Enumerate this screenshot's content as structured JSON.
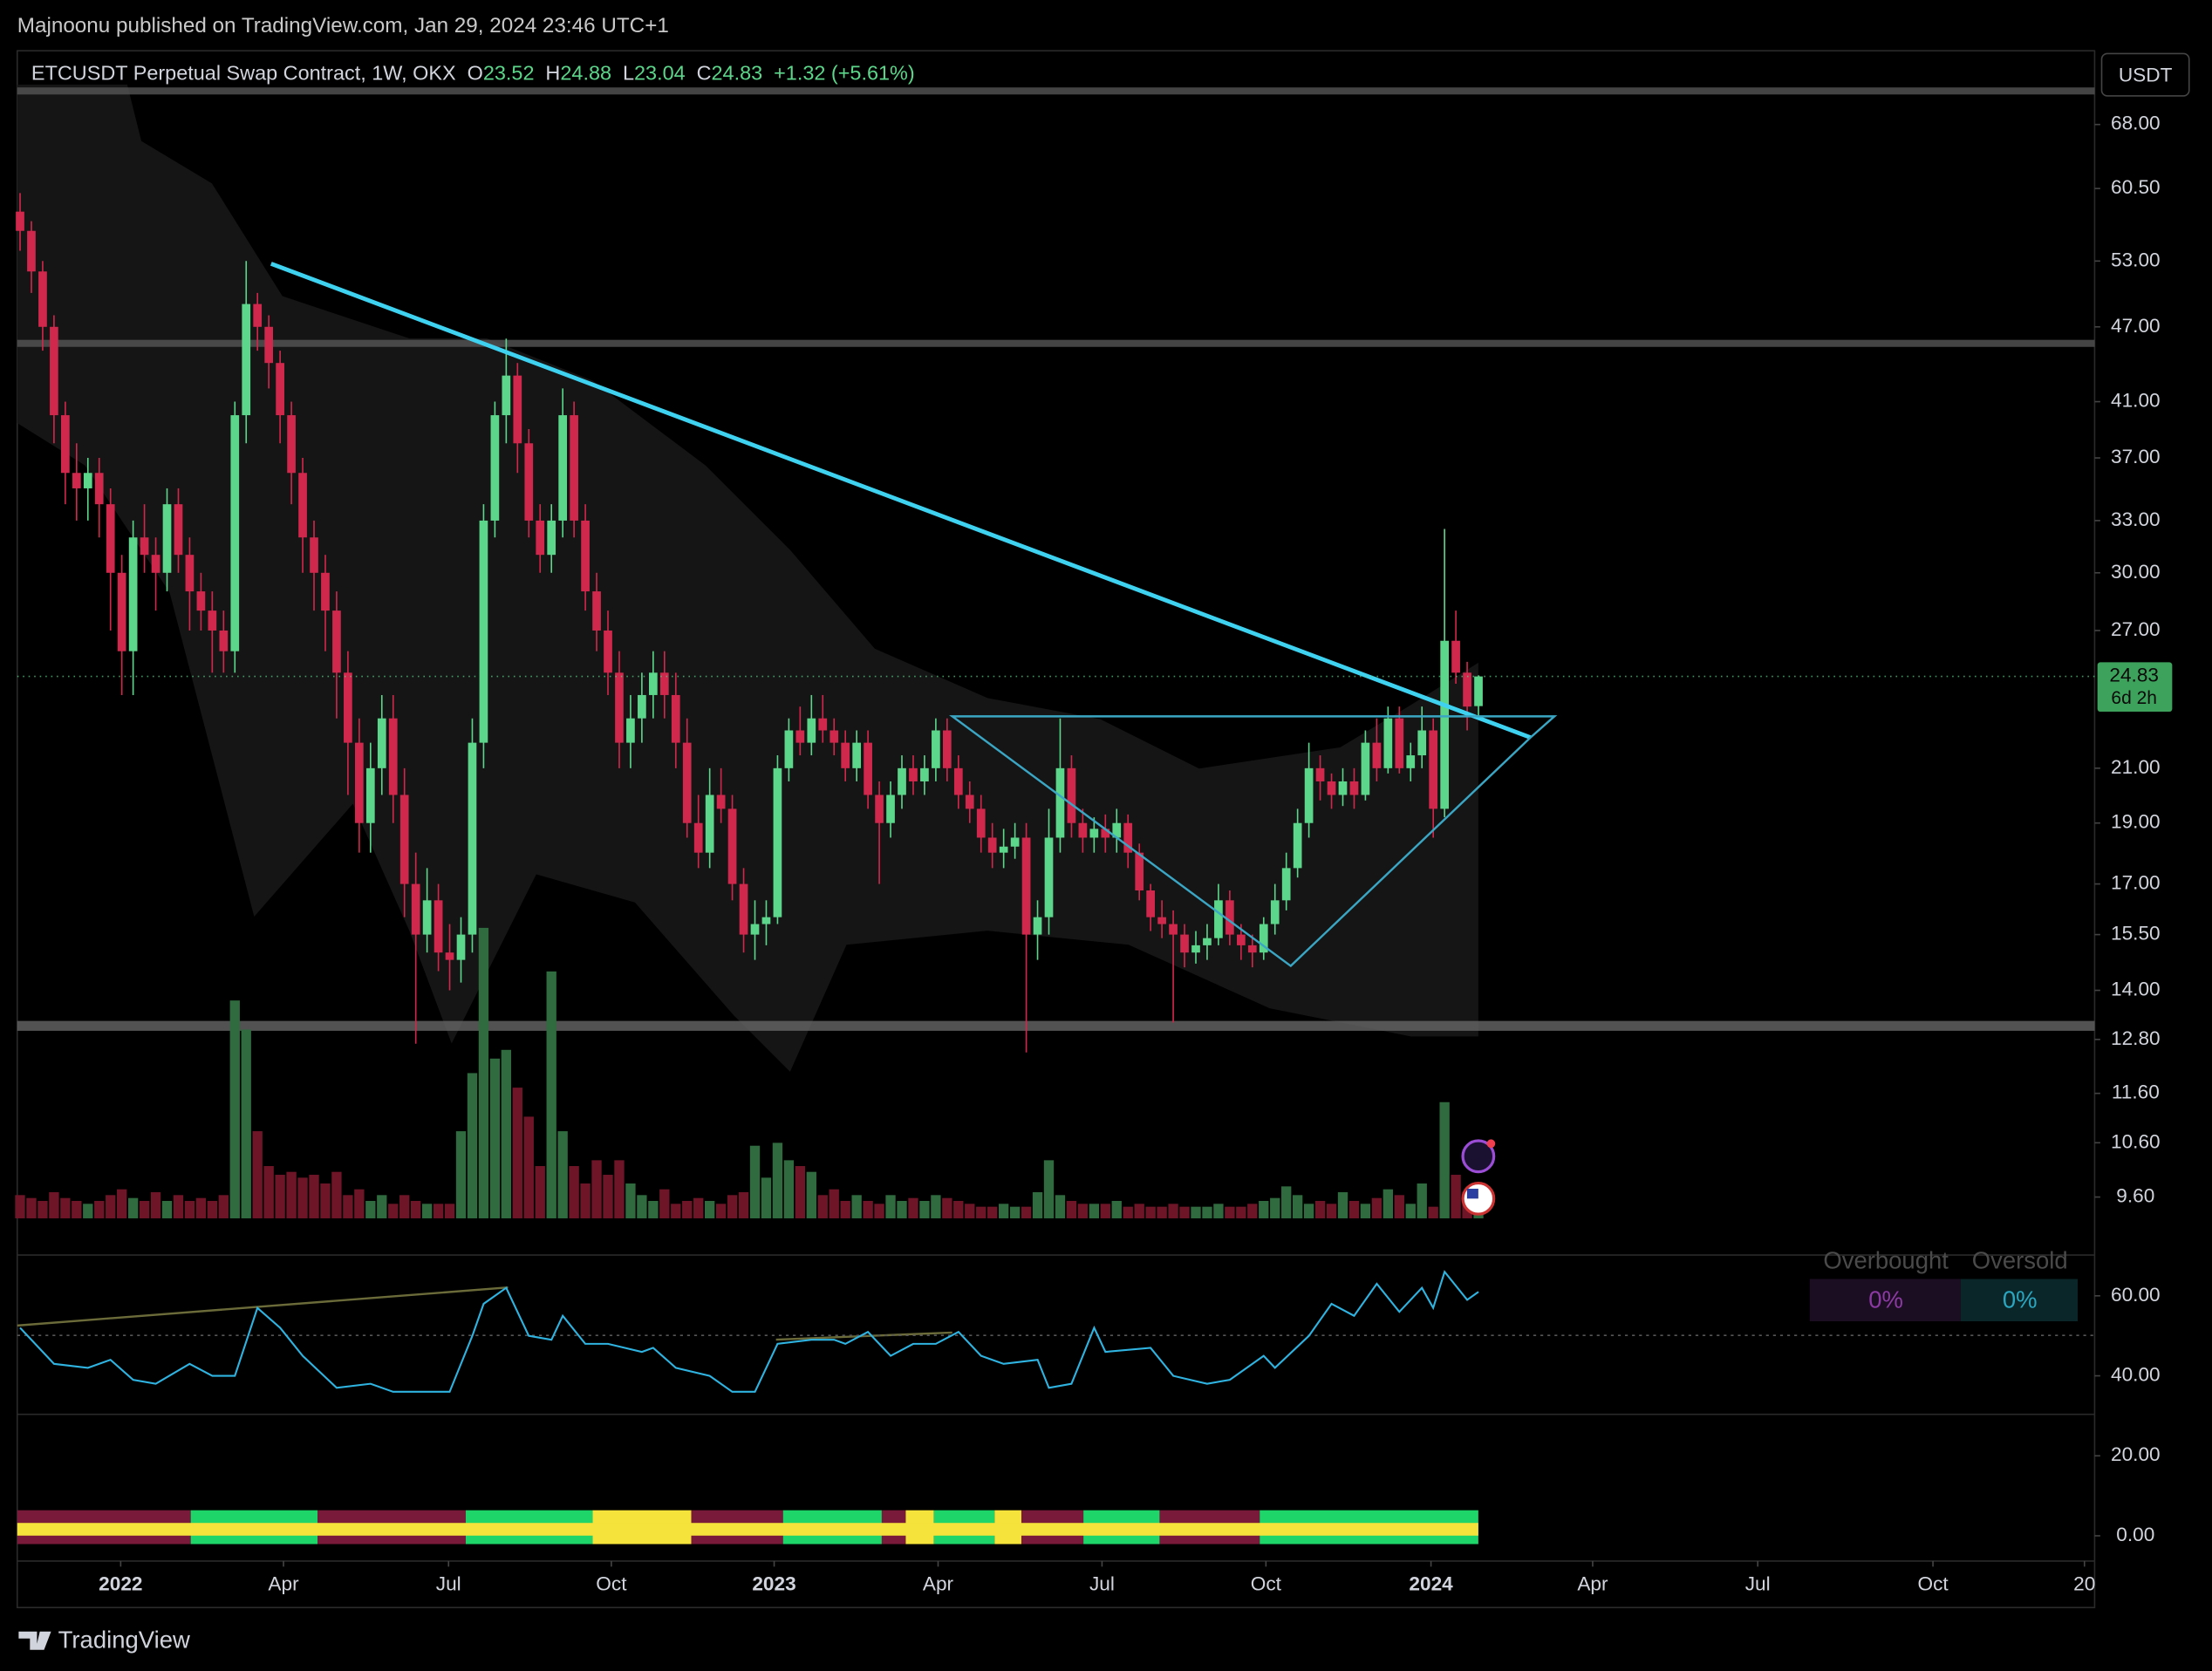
{
  "header": {
    "publisher": "Majnoonu published on TradingView.com, Jan 29, 2024 23:46 UTC+1"
  },
  "footer": {
    "brand": "TradingView"
  },
  "chart_data": [
    {
      "type": "candlestick",
      "title": "ETCUSDT Perpetual Swap Contract, 1W, OKX",
      "currency": "USDT",
      "legend": [
        {
          "label": "O",
          "value": 23.52
        },
        {
          "label": "H",
          "value": 24.88
        },
        {
          "label": "L",
          "value": 23.04
        },
        {
          "label": "C",
          "value": 24.83
        }
      ],
      "change": "+1.32 (+5.61%)",
      "price_tag": {
        "price": 24.83,
        "countdown": "6d 2h"
      },
      "up_color": "#5cd68a",
      "down_color": "#d0284c",
      "volume_up_color": "#2f6b3e",
      "volume_down_color": "#6e1528",
      "log_scale": true,
      "ylim": [
        9.21,
        72.2
      ],
      "yticks": [
        {
          "value": 68,
          "label": "68.00"
        },
        {
          "value": 60.5,
          "label": "60.50"
        },
        {
          "value": 53,
          "label": "53.00"
        },
        {
          "value": 47,
          "label": "47.00"
        },
        {
          "value": 41,
          "label": "41.00"
        },
        {
          "value": 37,
          "label": "37.00"
        },
        {
          "value": 33,
          "label": "33.00"
        },
        {
          "value": 30,
          "label": "30.00"
        },
        {
          "value": 27,
          "label": "27.00"
        },
        {
          "value": 21,
          "label": "21.00"
        },
        {
          "value": 19,
          "label": "19.00"
        },
        {
          "value": 17,
          "label": "17.00"
        },
        {
          "value": 15.5,
          "label": "15.50"
        },
        {
          "value": 14,
          "label": "14.00"
        },
        {
          "value": 12.8,
          "label": "12.80"
        },
        {
          "value": 11.6,
          "label": "11.60"
        },
        {
          "value": 10.6,
          "label": "10.60"
        },
        {
          "value": 9.6,
          "label": "9.60"
        }
      ],
      "xlim": [
        -0.25,
        183.5
      ],
      "xticks": [
        {
          "value": 8.9,
          "label": "2022"
        },
        {
          "value": 23.3,
          "label": "Apr"
        },
        {
          "value": 37.9,
          "label": "Jul"
        },
        {
          "value": 52.3,
          "label": "Oct"
        },
        {
          "value": 66.7,
          "label": "2023"
        },
        {
          "value": 81.2,
          "label": "Apr"
        },
        {
          "value": 95.7,
          "label": "Jul"
        },
        {
          "value": 110.2,
          "label": "Oct"
        },
        {
          "value": 124.8,
          "label": "2024"
        },
        {
          "value": 139.1,
          "label": "Apr"
        },
        {
          "value": 153.7,
          "label": "Jul"
        },
        {
          "value": 169.2,
          "label": "Oct"
        },
        {
          "value": 182.6,
          "label": "20"
        }
      ],
      "open": [
        58,
        56,
        52,
        47,
        40,
        36,
        35,
        36,
        34,
        30,
        26,
        32,
        31,
        30,
        34,
        31,
        29,
        28,
        27,
        26,
        40,
        49,
        47,
        44,
        40,
        36,
        32,
        30,
        28,
        25,
        22,
        19,
        21,
        23,
        20,
        17,
        15.5,
        16.5,
        15,
        14.8,
        15.5,
        22,
        33,
        40,
        43,
        38,
        33,
        31,
        33,
        40,
        33,
        29,
        27,
        25,
        22,
        23,
        24,
        25,
        24,
        22,
        19,
        18,
        20,
        19.5,
        17,
        15.5,
        15.8,
        16,
        21,
        22.5,
        22,
        23,
        22.5,
        22,
        21,
        22,
        20,
        19,
        20,
        21,
        20.5,
        21,
        22.5,
        21,
        20,
        19.5,
        18.5,
        18,
        18.2,
        18.5,
        15.5,
        16,
        18.5,
        21,
        19,
        18.5,
        18.8,
        18.5,
        19,
        18,
        16.8,
        16,
        15.8,
        15.5,
        15,
        15.2,
        15.4,
        16.5,
        15.5,
        15.2,
        15,
        15.8,
        16.5,
        17.5,
        19,
        21,
        20.5,
        20,
        20.5,
        20,
        22,
        21,
        23,
        21,
        21.5,
        22.5,
        19.5,
        26.5,
        25,
        23.52
      ],
      "high": [
        60,
        57,
        53,
        48,
        41,
        38,
        37,
        37,
        35,
        31,
        33,
        34,
        32,
        35,
        35,
        32,
        30,
        29,
        28,
        41,
        53,
        50,
        48,
        45,
        41,
        37,
        33,
        31,
        29,
        26,
        23,
        22,
        24,
        24,
        21,
        18,
        17.5,
        17,
        15.8,
        16,
        23,
        34,
        41,
        46,
        44,
        39,
        34,
        34,
        42,
        41,
        34,
        30,
        28,
        26,
        24,
        25,
        26,
        26,
        25,
        23,
        20,
        21,
        21,
        20,
        17.5,
        16.5,
        16.5,
        21.5,
        23,
        23.5,
        24,
        24,
        23,
        22.5,
        22.5,
        22.5,
        20.5,
        20.5,
        21.5,
        21.5,
        21.5,
        23,
        23,
        21.5,
        20.5,
        20,
        19,
        18.8,
        19,
        19,
        16.5,
        19.5,
        23,
        21.5,
        19.5,
        19.2,
        19.3,
        19.5,
        19.3,
        18.3,
        17,
        16.5,
        16.2,
        15.8,
        15.6,
        15.8,
        17,
        16.8,
        15.8,
        15.5,
        16,
        17,
        18,
        19.5,
        22,
        21.5,
        20.8,
        21,
        21,
        22.5,
        23,
        23.5,
        23.5,
        22,
        23.5,
        23,
        32.5,
        28,
        25.5,
        24.88
      ],
      "low": [
        54,
        50,
        45,
        38,
        34,
        33,
        33,
        32,
        27,
        24,
        24,
        30,
        28,
        29,
        30,
        27,
        27,
        25,
        25,
        25,
        38,
        45,
        42,
        38,
        34,
        30,
        28,
        26,
        23,
        20,
        18,
        18,
        20,
        19,
        16,
        12.7,
        15,
        14.5,
        14,
        14.2,
        15,
        21,
        32,
        38,
        36,
        32,
        30,
        30,
        32,
        32,
        28,
        26,
        24,
        21,
        21,
        22,
        23,
        23,
        21,
        18.5,
        17.5,
        17.5,
        19,
        16.5,
        15,
        14.8,
        15.2,
        15.8,
        20.5,
        21.5,
        21.5,
        22,
        21.5,
        20.5,
        20.5,
        19.5,
        17,
        18.5,
        19.5,
        20,
        20,
        20.5,
        20.5,
        19.5,
        19,
        18,
        17.5,
        17.5,
        17.8,
        12.5,
        14.8,
        15.5,
        18,
        18.5,
        18,
        18,
        18,
        18,
        17.5,
        16.5,
        15.6,
        15.4,
        13.2,
        14.6,
        14.7,
        14.8,
        15.2,
        15.2,
        14.8,
        14.6,
        14.8,
        15.5,
        16.2,
        17.2,
        18.5,
        19.8,
        19.5,
        19.6,
        19.5,
        19.8,
        20.5,
        20.8,
        20.8,
        20.5,
        21,
        18.5,
        19.2,
        24.5,
        22.5,
        23.04
      ],
      "close": [
        56,
        52,
        47,
        40,
        36,
        35,
        36,
        34,
        30,
        26,
        32,
        31,
        30,
        34,
        31,
        29,
        28,
        27,
        26,
        40,
        49,
        47,
        44,
        40,
        36,
        32,
        30,
        28,
        25,
        22,
        19,
        21,
        23,
        20,
        17,
        15.5,
        16.5,
        15,
        14.8,
        15.5,
        22,
        33,
        40,
        43,
        38,
        33,
        31,
        33,
        40,
        33,
        29,
        27,
        25,
        22,
        23,
        24,
        25,
        24,
        22,
        19,
        18,
        20,
        19.5,
        17,
        15.5,
        15.8,
        16,
        21,
        22.5,
        22,
        23,
        22.5,
        22,
        21,
        22,
        20,
        19,
        20,
        21,
        20.5,
        21,
        22.5,
        21,
        20,
        19.5,
        18.5,
        18,
        18.2,
        18.5,
        15.5,
        16,
        18.5,
        21,
        19,
        18.5,
        18.8,
        18.5,
        19,
        18,
        16.8,
        16,
        15.8,
        15.5,
        15,
        15.2,
        15.4,
        16.5,
        15.5,
        15.2,
        15,
        15.8,
        16.5,
        17.5,
        19,
        21,
        20.5,
        20,
        20.5,
        20,
        22,
        21,
        23,
        21,
        21.5,
        22.5,
        19.5,
        26.5,
        25,
        23.5,
        24.83
      ],
      "volume": [
        8,
        7,
        6,
        9,
        7,
        6,
        5,
        6,
        8,
        10,
        7,
        6,
        9,
        6,
        8,
        6,
        7,
        6,
        8,
        75,
        65,
        30,
        18,
        15,
        16,
        14,
        15,
        12,
        16,
        8,
        10,
        6,
        8,
        5,
        8,
        6,
        5,
        5,
        5,
        30,
        50,
        100,
        55,
        58,
        45,
        35,
        18,
        85,
        30,
        18,
        12,
        20,
        15,
        20,
        12,
        8,
        6,
        10,
        5,
        6,
        7,
        6,
        5,
        8,
        9,
        25,
        14,
        26,
        20,
        18,
        16,
        8,
        10,
        6,
        8,
        6,
        5,
        8,
        6,
        7,
        6,
        8,
        7,
        6,
        5,
        4,
        4,
        5,
        4,
        4,
        9,
        20,
        8,
        6,
        5,
        5,
        5,
        6,
        4,
        5,
        4,
        4,
        5,
        4,
        4,
        4,
        5,
        4,
        4,
        5,
        6,
        7,
        11,
        8,
        5,
        6,
        5,
        9,
        6,
        5,
        7,
        10,
        8,
        5,
        12,
        4,
        40,
        15,
        9,
        6
      ]
    },
    {
      "type": "line",
      "color": "#2fb3e0",
      "xlim": [
        -0.25,
        183.5
      ],
      "ylim": [
        -5.6,
        69.5
      ],
      "yticks": [
        {
          "value": 60,
          "label": "60.00"
        },
        {
          "value": 40,
          "label": "40.00"
        },
        {
          "value": 20,
          "label": "20.00"
        },
        {
          "value": 0,
          "label": "0.00"
        }
      ],
      "x": [
        0,
        3,
        6,
        8,
        10,
        12,
        15,
        17,
        19,
        21,
        23,
        25,
        28,
        31,
        33,
        36,
        38,
        40,
        41,
        43,
        45,
        47,
        48,
        50,
        52,
        55,
        56,
        58,
        61,
        63,
        65,
        67,
        70,
        72,
        73,
        75,
        77,
        79,
        81,
        83,
        85,
        87,
        90,
        91,
        93,
        95,
        96,
        100,
        102,
        105,
        107,
        110,
        111,
        114,
        116,
        118,
        120,
        122,
        124,
        125,
        126,
        128,
        129
      ],
      "values": [
        52,
        43,
        42,
        44,
        39,
        38,
        43,
        40,
        40,
        57,
        52,
        45,
        37,
        38,
        36,
        36,
        36,
        50,
        58,
        62,
        50,
        49,
        55,
        48,
        48,
        46,
        47,
        42,
        40,
        36,
        36,
        48,
        49,
        49,
        48,
        51,
        45,
        48,
        48,
        51,
        45,
        43,
        44,
        37,
        38,
        52,
        46,
        47,
        40,
        38,
        39,
        45,
        42,
        50,
        58,
        55,
        63,
        56,
        62,
        57,
        66,
        59,
        61
      ],
      "table": {
        "headers": [
          "Overbought",
          "Oversold"
        ],
        "cells": [
          "0%",
          "0%"
        ]
      }
    }
  ]
}
